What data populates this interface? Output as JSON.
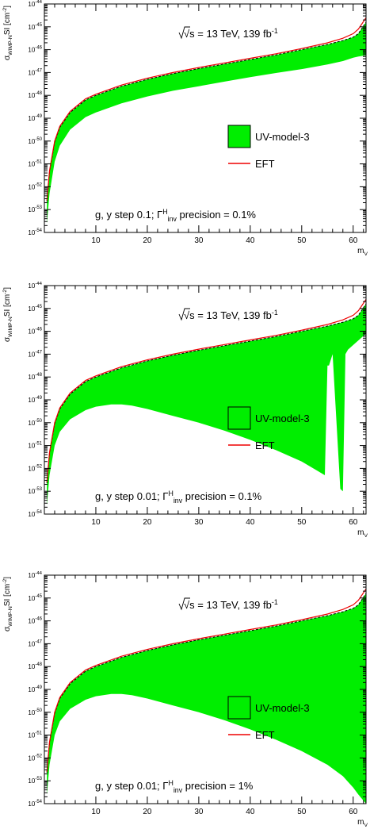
{
  "chart_data": [
    {
      "type": "area",
      "ylabel": "σ_{WIMP-N}SI [cm^{-2}]",
      "xlabel": "m_{V}",
      "ylog": true,
      "ylim_exp": [
        -54,
        -44
      ],
      "xlim": [
        0,
        62.5
      ],
      "x_ticks": [
        10,
        20,
        30,
        40,
        50,
        60
      ],
      "y_ticks": [
        -54,
        -53,
        -52,
        -51,
        -50,
        -49,
        -48,
        -47,
        -46,
        -45,
        -44
      ],
      "energy_label": "√s = 13 TeV, 139 fb^{-1}",
      "settings_label": "g, y step 0.1; Γ^{H}_{inv} precision = 0.1%",
      "legend": [
        {
          "name": "UV-model-3",
          "kind": "filled-box",
          "color": "#00ee00"
        },
        {
          "name": "EFT",
          "kind": "line",
          "color": "#ee0000"
        }
      ],
      "legend_position": "middle-right",
      "series": [
        {
          "name": "EFT",
          "x": [
            0.5,
            1,
            2,
            3,
            5,
            8,
            10,
            15,
            20,
            25,
            30,
            35,
            40,
            45,
            50,
            55,
            58,
            60,
            61,
            62.5
          ],
          "y_exp": [
            -52.6,
            -51.3,
            -50.0,
            -49.35,
            -48.7,
            -48.15,
            -47.95,
            -47.55,
            -47.25,
            -47.0,
            -46.78,
            -46.58,
            -46.38,
            -46.18,
            -45.95,
            -45.7,
            -45.5,
            -45.3,
            -45.1,
            -44.6
          ]
        },
        {
          "name": "UV-model-3 upper",
          "x": [
            0.5,
            1,
            2,
            3,
            5,
            8,
            10,
            15,
            20,
            25,
            30,
            35,
            40,
            45,
            50,
            55,
            58,
            60,
            61,
            62.5
          ],
          "y_exp": [
            -52.65,
            -51.35,
            -50.05,
            -49.4,
            -48.75,
            -48.2,
            -48.0,
            -47.6,
            -47.3,
            -47.05,
            -46.83,
            -46.63,
            -46.43,
            -46.23,
            -46.0,
            -45.77,
            -45.6,
            -45.45,
            -45.3,
            -44.8
          ]
        },
        {
          "name": "UV-model-3 lower",
          "x": [
            0.5,
            1,
            2,
            3,
            5,
            8,
            10,
            15,
            20,
            25,
            30,
            35,
            40,
            45,
            50,
            55,
            58,
            60,
            61,
            62.5
          ],
          "y_exp": [
            -53.6,
            -52.3,
            -50.9,
            -50.2,
            -49.5,
            -48.95,
            -48.75,
            -48.35,
            -48.05,
            -47.8,
            -47.6,
            -47.4,
            -47.2,
            -47.02,
            -46.85,
            -46.65,
            -46.5,
            -46.35,
            -46.3,
            -46.25
          ]
        }
      ]
    },
    {
      "type": "area",
      "ylabel": "σ_{WIMP-N}SI [cm^{-2}]",
      "xlabel": "m_{V}",
      "ylog": true,
      "ylim_exp": [
        -54,
        -44
      ],
      "xlim": [
        0,
        62.5
      ],
      "x_ticks": [
        10,
        20,
        30,
        40,
        50,
        60
      ],
      "y_ticks": [
        -54,
        -53,
        -52,
        -51,
        -50,
        -49,
        -48,
        -47,
        -46,
        -45,
        -44
      ],
      "energy_label": "√s = 13 TeV, 139 fb^{-1}",
      "settings_label": "g, y step 0.01; Γ^{H}_{inv} precision = 0.1%",
      "legend": [
        {
          "name": "UV-model-3",
          "kind": "open-box",
          "color": "#000000"
        },
        {
          "name": "EFT",
          "kind": "line",
          "color": "#ee0000"
        }
      ],
      "legend_position": "middle-right",
      "series": [
        {
          "name": "EFT",
          "x": [
            0.5,
            1,
            2,
            3,
            5,
            8,
            10,
            15,
            20,
            25,
            30,
            35,
            40,
            45,
            50,
            55,
            58,
            60,
            61,
            62.5
          ],
          "y_exp": [
            -52.6,
            -51.3,
            -50.0,
            -49.35,
            -48.7,
            -48.15,
            -47.95,
            -47.55,
            -47.25,
            -47.0,
            -46.78,
            -46.58,
            -46.38,
            -46.18,
            -45.95,
            -45.7,
            -45.5,
            -45.3,
            -45.1,
            -44.6
          ]
        },
        {
          "name": "UV-model-3 upper",
          "x": [
            0.5,
            1,
            2,
            3,
            5,
            8,
            10,
            15,
            20,
            25,
            30,
            35,
            40,
            45,
            50,
            55,
            58,
            60,
            61,
            62.5
          ],
          "y_exp": [
            -52.65,
            -51.35,
            -50.05,
            -49.4,
            -48.75,
            -48.2,
            -48.0,
            -47.6,
            -47.3,
            -47.05,
            -46.83,
            -46.63,
            -46.43,
            -46.23,
            -46.0,
            -45.77,
            -45.6,
            -45.45,
            -45.3,
            -44.8
          ]
        },
        {
          "name": "UV-model-3 lower",
          "x": [
            0.5,
            1,
            2,
            3,
            5,
            8,
            10,
            13,
            15,
            17,
            20,
            25,
            30,
            35,
            40,
            45,
            50,
            53,
            54.5,
            55,
            55.3,
            56,
            57.5,
            58,
            58.5,
            59,
            60,
            61,
            62.5
          ],
          "y_exp": [
            -53.6,
            -52.3,
            -51.0,
            -50.4,
            -49.85,
            -49.45,
            -49.3,
            -49.2,
            -49.2,
            -49.25,
            -49.4,
            -49.7,
            -50.0,
            -50.35,
            -50.75,
            -51.2,
            -51.7,
            -52.1,
            -52.3,
            -47.5,
            -47.5,
            -47.0,
            -52.9,
            -53.0,
            -47.0,
            -46.8,
            -46.6,
            -46.4,
            -46.1
          ]
        }
      ]
    },
    {
      "type": "area",
      "ylabel": "σ_{WIMP-N}SI [cm^{-2}]",
      "xlabel": "m_{V}",
      "ylog": true,
      "ylim_exp": [
        -54,
        -44
      ],
      "xlim": [
        0,
        62.5
      ],
      "x_ticks": [
        10,
        20,
        30,
        40,
        50,
        60
      ],
      "y_ticks": [
        -54,
        -53,
        -52,
        -51,
        -50,
        -49,
        -48,
        -47,
        -46,
        -45,
        -44
      ],
      "energy_label": "√s = 13 TeV, 139 fb^{-1}",
      "settings_label": "g, y step 0.01; Γ^{H}_{inv} precision = 1%",
      "legend": [
        {
          "name": "UV-model-3",
          "kind": "open-box",
          "color": "#000000"
        },
        {
          "name": "EFT",
          "kind": "line",
          "color": "#ee0000"
        }
      ],
      "legend_position": "middle-right",
      "series": [
        {
          "name": "EFT",
          "x": [
            0.5,
            1,
            2,
            3,
            5,
            8,
            10,
            15,
            20,
            25,
            30,
            35,
            40,
            45,
            50,
            55,
            58,
            60,
            61,
            62.5
          ],
          "y_exp": [
            -52.6,
            -51.3,
            -50.0,
            -49.35,
            -48.7,
            -48.15,
            -47.95,
            -47.55,
            -47.25,
            -47.0,
            -46.78,
            -46.58,
            -46.38,
            -46.18,
            -45.95,
            -45.7,
            -45.5,
            -45.3,
            -45.1,
            -44.6
          ]
        },
        {
          "name": "UV-model-3 upper",
          "x": [
            0.5,
            1,
            2,
            3,
            5,
            8,
            10,
            15,
            20,
            25,
            30,
            35,
            40,
            45,
            50,
            55,
            58,
            60,
            61,
            62.5
          ],
          "y_exp": [
            -52.65,
            -51.35,
            -50.05,
            -49.4,
            -48.75,
            -48.2,
            -48.0,
            -47.6,
            -47.3,
            -47.05,
            -46.83,
            -46.63,
            -46.43,
            -46.23,
            -46.0,
            -45.77,
            -45.6,
            -45.45,
            -45.3,
            -44.8
          ]
        },
        {
          "name": "UV-model-3 lower",
          "x": [
            0.5,
            1,
            2,
            3,
            5,
            8,
            10,
            13,
            15,
            17,
            20,
            25,
            30,
            35,
            40,
            45,
            50,
            55,
            58,
            60,
            61,
            62.5
          ],
          "y_exp": [
            -53.6,
            -52.3,
            -51.0,
            -50.4,
            -49.85,
            -49.45,
            -49.3,
            -49.2,
            -49.2,
            -49.25,
            -49.4,
            -49.7,
            -50.0,
            -50.35,
            -50.75,
            -51.2,
            -51.7,
            -52.3,
            -52.8,
            -53.3,
            -53.6,
            -54.0
          ]
        }
      ]
    }
  ]
}
